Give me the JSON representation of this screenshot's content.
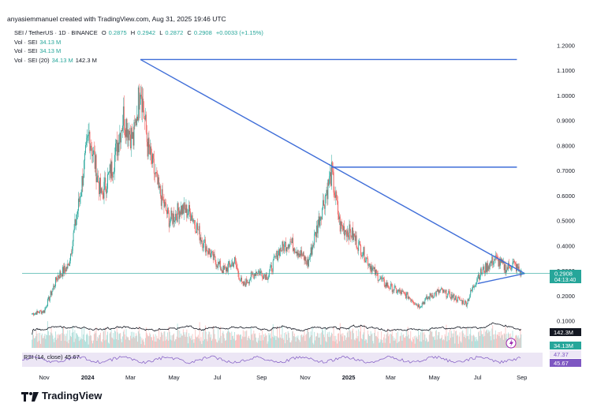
{
  "header": {
    "credit": "anyasiemmanuel created with TradingView.com, Aug 31, 2025 19:46 UTC",
    "symbol": "SEI / TetherUS · 1D · BINANCE",
    "o_label": "O",
    "o_value": "0.2875",
    "h_label": "H",
    "h_value": "0.2942",
    "l_label": "L",
    "l_value": "0.2872",
    "c_label": "C",
    "c_value": "0.2908",
    "change": "+0.0033 (+1.15%)",
    "vol1_label": "Vol · SEI",
    "vol1_value": "34.13 M",
    "vol2_label": "Vol · SEI",
    "vol2_value": "34.13 M",
    "vol3_label": "Vol · SEI (20)",
    "vol3_value": "34.13 M",
    "vol3_ma": "142.3 M"
  },
  "badges": {
    "price": "0.2908",
    "countdown": "04:13:40",
    "vol_ma": "142.3M",
    "vol": "34.13M",
    "rsi1": "47.37",
    "rsi2": "45.67"
  },
  "rsi_legend": {
    "label": "RSI (14, close)",
    "value": "45.67"
  },
  "brand": {
    "name": "TradingView"
  },
  "colors": {
    "up": "#26a69a",
    "down": "#ef5350",
    "trend": "#3f6ed8",
    "price_line": "#26a69a",
    "rsi_band": "#ece6f5",
    "rsi_line": "#7e57c2"
  },
  "chart_data": {
    "type": "candlestick",
    "title": "SEI / TetherUS · 1D · BINANCE",
    "y_ticks": [
      "1.2000",
      "1.1000",
      "1.0000",
      "0.9000",
      "0.8000",
      "0.7000",
      "0.6000",
      "0.5000",
      "0.4000",
      "0.3000",
      "0.2000",
      "0.1000"
    ],
    "x_ticks": [
      "Nov",
      "2024",
      "Mar",
      "May",
      "Jul",
      "Sep",
      "Nov",
      "2025",
      "Mar",
      "May",
      "Jul",
      "Sep"
    ],
    "last_price": 0.2908,
    "price_path": [
      [
        "2023-10-15",
        0.13
      ],
      [
        "2023-11-01",
        0.14
      ],
      [
        "2023-11-20",
        0.28
      ],
      [
        "2023-12-05",
        0.32
      ],
      [
        "2023-12-20",
        0.58
      ],
      [
        "2024-01-03",
        0.85
      ],
      [
        "2024-01-20",
        0.6
      ],
      [
        "2024-02-05",
        0.72
      ],
      [
        "2024-02-20",
        0.92
      ],
      [
        "2024-03-05",
        0.82
      ],
      [
        "2024-03-15",
        1.05
      ],
      [
        "2024-03-25",
        0.8
      ],
      [
        "2024-04-10",
        0.62
      ],
      [
        "2024-04-25",
        0.5
      ],
      [
        "2024-05-10",
        0.55
      ],
      [
        "2024-05-25",
        0.53
      ],
      [
        "2024-06-10",
        0.42
      ],
      [
        "2024-06-25",
        0.35
      ],
      [
        "2024-07-10",
        0.3
      ],
      [
        "2024-07-25",
        0.34
      ],
      [
        "2024-08-05",
        0.24
      ],
      [
        "2024-08-25",
        0.3
      ],
      [
        "2024-09-10",
        0.28
      ],
      [
        "2024-09-25",
        0.38
      ],
      [
        "2024-10-10",
        0.42
      ],
      [
        "2024-10-25",
        0.37
      ],
      [
        "2024-11-05",
        0.33
      ],
      [
        "2024-11-20",
        0.5
      ],
      [
        "2024-12-01",
        0.62
      ],
      [
        "2024-12-08",
        0.69
      ],
      [
        "2024-12-20",
        0.48
      ],
      [
        "2025-01-05",
        0.45
      ],
      [
        "2025-01-20",
        0.38
      ],
      [
        "2025-02-05",
        0.3
      ],
      [
        "2025-02-20",
        0.25
      ],
      [
        "2025-03-10",
        0.22
      ],
      [
        "2025-03-25",
        0.2
      ],
      [
        "2025-04-10",
        0.16
      ],
      [
        "2025-04-25",
        0.2
      ],
      [
        "2025-05-10",
        0.22
      ],
      [
        "2025-05-25",
        0.2
      ],
      [
        "2025-06-15",
        0.17
      ],
      [
        "2025-07-01",
        0.28
      ],
      [
        "2025-07-15",
        0.32
      ],
      [
        "2025-07-25",
        0.35
      ],
      [
        "2025-08-10",
        0.31
      ],
      [
        "2025-08-20",
        0.33
      ],
      [
        "2025-08-31",
        0.2908
      ]
    ],
    "annotations": {
      "resistance_high": {
        "from": "2024-03-15",
        "to": "2025-08-25",
        "price": 1.145
      },
      "resistance_mid": {
        "from": "2024-12-08",
        "to": "2025-08-25",
        "price": 0.715
      },
      "descending_trendline": {
        "from": [
          "2024-03-15",
          1.145
        ],
        "to": [
          "2025-09-05",
          0.29
        ]
      },
      "triangle_support": {
        "from": [
          "2025-07-01",
          0.25
        ],
        "to": [
          "2025-09-05",
          0.29
        ]
      }
    }
  }
}
